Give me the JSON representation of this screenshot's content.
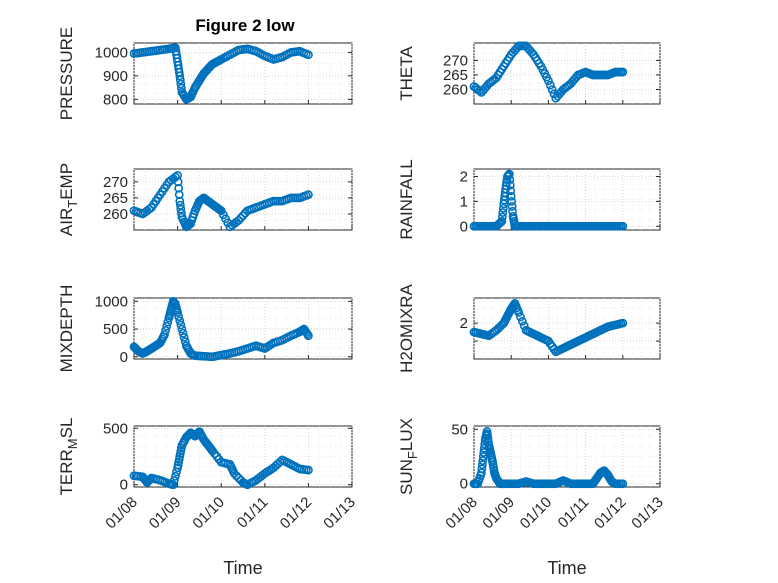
{
  "figure_title": "Figure 2 low",
  "colors": {
    "marker": "#0072bd",
    "axis": "#262626",
    "grid": "#cfcfcf"
  },
  "chart_data": [
    {
      "id": "pressure",
      "type": "scatter",
      "title": "Figure 2 low",
      "xlabel": "",
      "ylabel": "PRESSURE",
      "ylabel_parts": [],
      "xlim": [
        8,
        13
      ],
      "ylim": [
        780,
        1040
      ],
      "yticks": [
        800,
        900,
        1000
      ],
      "ytick_labels": [
        "800",
        "900",
        "1000"
      ],
      "xticks": [],
      "xtick_labels": [],
      "x": [
        8.0,
        8.2,
        8.4,
        8.6,
        8.8,
        8.95,
        9.0,
        9.05,
        9.1,
        9.2,
        9.3,
        9.4,
        9.5,
        9.6,
        9.7,
        9.8,
        9.9,
        10.0,
        10.2,
        10.4,
        10.6,
        10.8,
        11.0,
        11.2,
        11.4,
        11.6,
        11.8,
        12.0
      ],
      "y": [
        995,
        1000,
        1005,
        1010,
        1015,
        1020,
        960,
        900,
        830,
        800,
        810,
        850,
        880,
        910,
        930,
        950,
        960,
        970,
        990,
        1010,
        1015,
        1005,
        985,
        970,
        980,
        1000,
        1005,
        990
      ]
    },
    {
      "id": "theta",
      "type": "scatter",
      "xlabel": "",
      "ylabel": "THETA",
      "ylabel_parts": [],
      "xlim": [
        8,
        13
      ],
      "ylim": [
        255,
        276
      ],
      "yticks": [
        260,
        265,
        270
      ],
      "ytick_labels": [
        "260",
        "265",
        "270"
      ],
      "xticks": [],
      "xtick_labels": [],
      "x": [
        8.0,
        8.2,
        8.4,
        8.6,
        8.8,
        9.0,
        9.2,
        9.4,
        9.6,
        9.8,
        10.0,
        10.2,
        10.4,
        10.6,
        10.8,
        11.0,
        11.2,
        11.4,
        11.6,
        11.8,
        12.0
      ],
      "y": [
        261,
        259,
        262,
        264,
        268,
        272,
        275,
        275,
        272,
        268,
        263,
        257,
        260,
        262,
        265,
        266,
        265,
        265,
        265,
        266,
        266
      ]
    },
    {
      "id": "airtemp",
      "type": "scatter",
      "xlabel": "",
      "ylabel": "AIR_TEMP",
      "ylabel_parts": [
        "AIR",
        "T",
        "EMP"
      ],
      "xlim": [
        8,
        13
      ],
      "ylim": [
        255,
        274
      ],
      "yticks": [
        260,
        265,
        270
      ],
      "ytick_labels": [
        "260",
        "265",
        "270"
      ],
      "xticks": [],
      "xtick_labels": [],
      "x": [
        8.0,
        8.2,
        8.4,
        8.6,
        8.8,
        9.0,
        9.05,
        9.1,
        9.2,
        9.3,
        9.4,
        9.5,
        9.6,
        9.7,
        9.8,
        9.9,
        10.0,
        10.2,
        10.4,
        10.6,
        10.8,
        11.0,
        11.2,
        11.4,
        11.6,
        11.8,
        12.0
      ],
      "y": [
        261,
        260,
        262,
        266,
        270,
        272,
        264,
        259,
        256,
        257,
        261,
        264,
        265,
        264,
        263,
        262,
        261,
        256,
        258,
        261,
        262,
        263,
        264,
        264,
        265,
        265,
        266
      ]
    },
    {
      "id": "rainfall",
      "type": "scatter",
      "xlabel": "",
      "ylabel": "RAINFALL",
      "ylabel_parts": [],
      "xlim": [
        8,
        13
      ],
      "ylim": [
        -0.15,
        2.3
      ],
      "yticks": [
        0,
        1,
        2
      ],
      "ytick_labels": [
        "0",
        "1",
        "2"
      ],
      "xticks": [],
      "xtick_labels": [],
      "x": [
        8.0,
        8.2,
        8.4,
        8.6,
        8.75,
        8.8,
        8.85,
        8.9,
        8.95,
        9.0,
        9.05,
        9.1,
        9.2,
        9.4,
        9.6,
        9.8,
        10.0,
        10.2,
        10.4,
        10.6,
        10.8,
        11.0,
        11.2,
        11.4,
        11.6,
        11.8,
        12.0
      ],
      "y": [
        0,
        0,
        0,
        0,
        0.2,
        0.9,
        1.5,
        2.0,
        2.1,
        1.2,
        0.4,
        0,
        0,
        0,
        0,
        0,
        0,
        0,
        0,
        0,
        0,
        0,
        0,
        0,
        0,
        0,
        0
      ]
    },
    {
      "id": "mixdepth",
      "type": "scatter",
      "xlabel": "",
      "ylabel": "MIXDEPTH",
      "ylabel_parts": [],
      "xlim": [
        8,
        13
      ],
      "ylim": [
        -40,
        1060
      ],
      "yticks": [
        0,
        500,
        1000
      ],
      "ytick_labels": [
        "0",
        "500",
        "1000"
      ],
      "xticks": [],
      "xtick_labels": [],
      "x": [
        8.0,
        8.1,
        8.2,
        8.3,
        8.4,
        8.5,
        8.6,
        8.7,
        8.8,
        8.85,
        8.9,
        8.95,
        9.0,
        9.1,
        9.2,
        9.3,
        9.4,
        9.6,
        9.8,
        10.0,
        10.2,
        10.4,
        10.6,
        10.8,
        11.0,
        11.2,
        11.4,
        11.6,
        11.8,
        11.9,
        12.0
      ],
      "y": [
        180,
        100,
        60,
        100,
        150,
        200,
        250,
        400,
        700,
        850,
        1000,
        950,
        800,
        500,
        200,
        60,
        20,
        10,
        0,
        30,
        60,
        100,
        150,
        200,
        150,
        250,
        300,
        380,
        450,
        500,
        380
      ]
    },
    {
      "id": "h2omixra",
      "type": "scatter",
      "xlabel": "",
      "ylabel": "H2OMIXRA",
      "ylabel_parts": [],
      "xlim": [
        8,
        13
      ],
      "ylim": [
        0,
        3.4
      ],
      "yticks": [
        1,
        2
      ],
      "ytick_labels": [
        "",
        "2"
      ],
      "xticks": [],
      "xtick_labels": [],
      "x": [
        8.0,
        8.2,
        8.4,
        8.6,
        8.8,
        8.9,
        9.0,
        9.1,
        9.2,
        9.4,
        9.6,
        9.8,
        10.0,
        10.2,
        10.4,
        10.6,
        10.8,
        11.0,
        11.2,
        11.4,
        11.6,
        11.8,
        12.0
      ],
      "y": [
        1.5,
        1.4,
        1.3,
        1.6,
        2.0,
        2.4,
        2.8,
        3.1,
        2.6,
        1.6,
        1.4,
        1.2,
        1.0,
        0.4,
        0.6,
        0.8,
        1.0,
        1.2,
        1.4,
        1.6,
        1.8,
        1.9,
        2.0
      ]
    },
    {
      "id": "terrmsl",
      "type": "scatter",
      "xlabel": "Time",
      "ylabel": "TERR_MSL",
      "ylabel_parts": [
        "TERR",
        "M",
        "SL"
      ],
      "xlim": [
        8,
        13
      ],
      "ylim": [
        -20,
        520
      ],
      "yticks": [
        0,
        500
      ],
      "ytick_labels": [
        "0",
        "500"
      ],
      "xticks": [
        8,
        9,
        10,
        11,
        12,
        13
      ],
      "xtick_labels": [
        "01/08",
        "01/09",
        "01/10",
        "01/11",
        "01/12",
        "01/13"
      ],
      "x": [
        8.0,
        8.2,
        8.3,
        8.4,
        8.6,
        8.8,
        8.9,
        9.0,
        9.05,
        9.1,
        9.2,
        9.3,
        9.4,
        9.5,
        9.6,
        9.7,
        9.8,
        10.0,
        10.2,
        10.3,
        10.5,
        10.6,
        10.8,
        11.0,
        11.2,
        11.4,
        11.6,
        11.8,
        12.0
      ],
      "y": [
        80,
        70,
        20,
        60,
        40,
        10,
        0,
        150,
        250,
        350,
        420,
        460,
        430,
        470,
        400,
        350,
        300,
        200,
        180,
        100,
        20,
        0,
        40,
        100,
        150,
        220,
        180,
        140,
        130
      ]
    },
    {
      "id": "sunflux",
      "type": "scatter",
      "xlabel": "Time",
      "ylabel": "SUN_FLUX",
      "ylabel_parts": [
        "SUN",
        "F",
        "LUX"
      ],
      "xlim": [
        8,
        13
      ],
      "ylim": [
        -3,
        53
      ],
      "yticks": [
        0,
        50
      ],
      "ytick_labels": [
        "0",
        "50"
      ],
      "xticks": [
        8,
        9,
        10,
        11,
        12,
        13
      ],
      "xtick_labels": [
        "01/08",
        "01/09",
        "01/10",
        "01/11",
        "01/12",
        "01/13"
      ],
      "x": [
        8.0,
        8.1,
        8.2,
        8.25,
        8.3,
        8.35,
        8.4,
        8.45,
        8.5,
        8.55,
        8.6,
        8.7,
        8.8,
        9.0,
        9.2,
        9.4,
        9.6,
        9.8,
        10.0,
        10.2,
        10.4,
        10.6,
        10.8,
        11.0,
        11.2,
        11.3,
        11.4,
        11.5,
        11.6,
        11.7,
        11.8,
        12.0
      ],
      "y": [
        0,
        0,
        10,
        25,
        40,
        48,
        35,
        28,
        20,
        10,
        5,
        0,
        0,
        0,
        0,
        2,
        0,
        0,
        0,
        0,
        3,
        0,
        0,
        0,
        0,
        5,
        10,
        12,
        8,
        2,
        0,
        0
      ]
    }
  ]
}
